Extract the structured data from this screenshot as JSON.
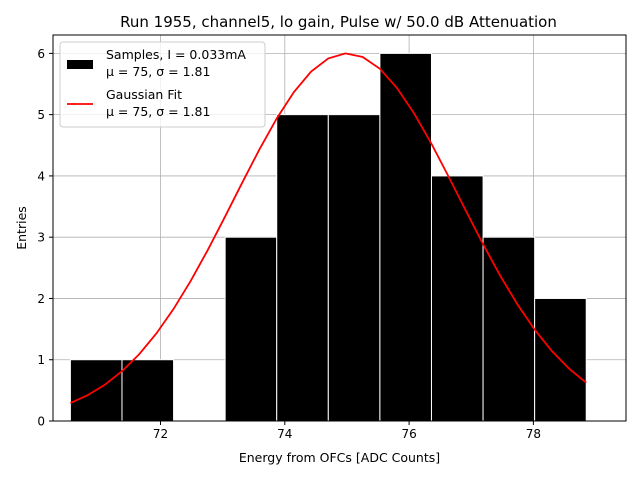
{
  "chart_data": {
    "type": "bar",
    "title": "Run 1955, channel5, lo gain, Pulse w/ 50.0 dB Attenuation",
    "xlabel": "Energy from OFCs [ADC Counts]",
    "ylabel": "Entries",
    "xlim": [
      70.27,
      79.49
    ],
    "ylim": [
      0,
      6.3
    ],
    "xticks": [
      "72",
      "74",
      "76",
      "78"
    ],
    "yticks": [
      "0",
      "1",
      "2",
      "3",
      "4",
      "5",
      "6"
    ],
    "grid": true,
    "legend_position": "top-left",
    "histogram": {
      "name": "Samples, I = 0.033mA",
      "stats": "μ = 75, σ = 1.81",
      "bin_edges": [
        70.55,
        71.38,
        72.21,
        73.04,
        73.87,
        74.7,
        75.53,
        76.36,
        77.19,
        78.02,
        78.85
      ],
      "counts": [
        1,
        1,
        0,
        3,
        5,
        5,
        6,
        4,
        3,
        2
      ],
      "color": "#000000",
      "edge_color": "#ffffff"
    },
    "fit": {
      "name": "Gaussian Fit",
      "stats": "μ = 75, σ = 1.81",
      "mu": 75.0,
      "sigma": 1.81,
      "amplitude": 6.0,
      "x_range": [
        70.55,
        78.85
      ],
      "color": "#ff0000"
    }
  }
}
